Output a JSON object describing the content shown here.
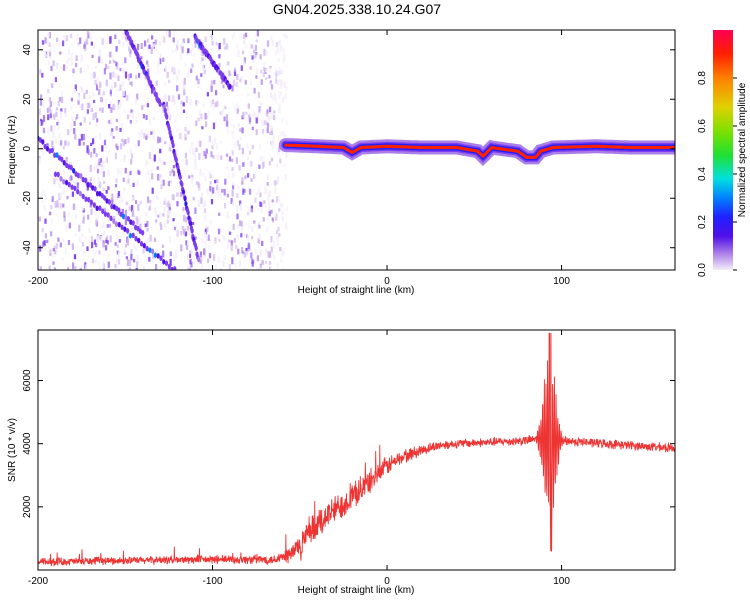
{
  "title": "GN04.2025.338.10.24.G07",
  "colors": {
    "snr_line": "#ee3333",
    "axis": "#000000",
    "colormap": [
      "#f4eefa",
      "#d2b9f0",
      "#a97ee8",
      "#7d3ef0",
      "#5010e8",
      "#2020ff",
      "#0080ff",
      "#00e0e0",
      "#20e030",
      "#80e000",
      "#e0d000",
      "#ff8000",
      "#ff2000",
      "#ff0050"
    ]
  },
  "chart_data": [
    {
      "type": "heatmap",
      "title": "GN04.2025.338.10.24.G07",
      "xlabel": "Height of straight line (km)",
      "ylabel": "Frequency (Hz)",
      "xlim": [
        -200,
        165
      ],
      "ylim": [
        -49,
        48
      ],
      "xticks": [
        -200,
        -100,
        0,
        100
      ],
      "xtick_labels": [
        "-200",
        "-100",
        "0",
        "100"
      ],
      "yticks": [
        40,
        20,
        0,
        -20,
        -40
      ],
      "ytick_labels": [
        "40",
        "20",
        "0",
        "-20",
        "-40"
      ],
      "noise_region_x": [
        -200,
        -58
      ],
      "carrier_track": {
        "x": [
          -58,
          -40,
          -25,
          -20,
          -15,
          0,
          20,
          40,
          52,
          55,
          60,
          75,
          80,
          85,
          88,
          95,
          120,
          140,
          165
        ],
        "freq": [
          1.5,
          1.0,
          0.5,
          -1.5,
          0.5,
          1.0,
          0.5,
          0.5,
          -1.0,
          -3.0,
          0.5,
          -1.0,
          -3.5,
          -3.5,
          -1.0,
          0.5,
          1.0,
          0.5,
          0.5
        ],
        "amplitude": 0.95
      },
      "streaks": [
        {
          "x": [
            -200,
            -140
          ],
          "freq": [
            4,
            -34
          ]
        },
        {
          "x": [
            -190,
            -120
          ],
          "freq": [
            -10,
            -50
          ]
        },
        {
          "x": [
            -150,
            -130
          ],
          "freq": [
            48,
            18
          ]
        },
        {
          "x": [
            -128,
            -108
          ],
          "freq": [
            18,
            -45
          ]
        },
        {
          "x": [
            -110,
            -90
          ],
          "freq": [
            45,
            25
          ]
        }
      ],
      "colorbar": {
        "label": "Normalized spectral amplitude",
        "range": [
          0,
          1
        ],
        "ticks": [
          0.0,
          0.2,
          0.4,
          0.6,
          0.8
        ],
        "tick_labels": [
          "0.0",
          "0.2",
          "0.4",
          "0.6",
          "0.8"
        ]
      }
    },
    {
      "type": "line",
      "xlabel": "Height of straight line (km)",
      "ylabel": "SNR (10 * v/v)",
      "xlim": [
        -200,
        165
      ],
      "ylim": [
        0,
        7600
      ],
      "xticks": [
        -200,
        -100,
        0,
        100
      ],
      "xtick_labels": [
        "-200",
        "-100",
        "0",
        "100"
      ],
      "yticks": [
        2000,
        4000,
        6000
      ],
      "ytick_labels": [
        "2000",
        "4000",
        "6000"
      ],
      "series": [
        {
          "name": "SNR",
          "envelope_x": [
            -200,
            -150,
            -100,
            -65,
            -55,
            -45,
            -35,
            -20,
            -10,
            0,
            10,
            20,
            30,
            40,
            60,
            80,
            86,
            165
          ],
          "envelope_y": [
            250,
            300,
            330,
            330,
            500,
            1100,
            1700,
            2300,
            2800,
            3300,
            3600,
            3800,
            3950,
            4000,
            4050,
            4100,
            4150,
            3850
          ],
          "noise_amplitude": [
            120,
            120,
            130,
            150,
            300,
            500,
            450,
            420,
            380,
            300,
            220,
            180,
            150,
            140,
            140,
            150,
            150,
            140
          ],
          "burst": {
            "x": [
              86,
              102
            ],
            "min": 600,
            "max": 7500,
            "peak_x": 93
          }
        }
      ]
    }
  ]
}
